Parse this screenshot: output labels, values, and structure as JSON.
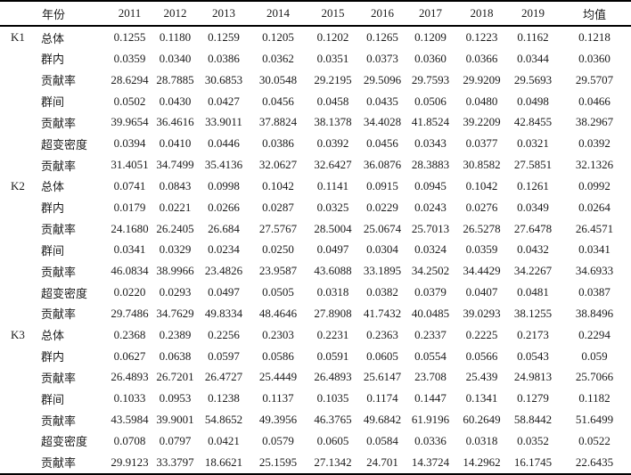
{
  "table": {
    "year_header": "年份",
    "columns": [
      "2011",
      "2012",
      "2013",
      "2014",
      "2015",
      "2016",
      "2017",
      "2018",
      "2019",
      "均值"
    ],
    "groups": [
      {
        "name": "K1",
        "rows": [
          {
            "label": "总体",
            "values": [
              "0.1255",
              "0.1180",
              "0.1259",
              "0.1205",
              "0.1202",
              "0.1265",
              "0.1209",
              "0.1223",
              "0.1162",
              "0.1218"
            ]
          },
          {
            "label": "群内",
            "values": [
              "0.0359",
              "0.0340",
              "0.0386",
              "0.0362",
              "0.0351",
              "0.0373",
              "0.0360",
              "0.0366",
              "0.0344",
              "0.0360"
            ]
          },
          {
            "label": "贡献率",
            "values": [
              "28.6294",
              "28.7885",
              "30.6853",
              "30.0548",
              "29.2195",
              "29.5096",
              "29.7593",
              "29.9209",
              "29.5693",
              "29.5707"
            ]
          },
          {
            "label": "群间",
            "values": [
              "0.0502",
              "0.0430",
              "0.0427",
              "0.0456",
              "0.0458",
              "0.0435",
              "0.0506",
              "0.0480",
              "0.0498",
              "0.0466"
            ]
          },
          {
            "label": "贡献率",
            "values": [
              "39.9654",
              "36.4616",
              "33.9011",
              "37.8824",
              "38.1378",
              "34.4028",
              "41.8524",
              "39.2209",
              "42.8455",
              "38.2967"
            ]
          },
          {
            "label": "超变密度",
            "values": [
              "0.0394",
              "0.0410",
              "0.0446",
              "0.0386",
              "0.0392",
              "0.0456",
              "0.0343",
              "0.0377",
              "0.0321",
              "0.0392"
            ]
          },
          {
            "label": "贡献率",
            "values": [
              "31.4051",
              "34.7499",
              "35.4136",
              "32.0627",
              "32.6427",
              "36.0876",
              "28.3883",
              "30.8582",
              "27.5851",
              "32.1326"
            ]
          }
        ]
      },
      {
        "name": "K2",
        "rows": [
          {
            "label": "总体",
            "values": [
              "0.0741",
              "0.0843",
              "0.0998",
              "0.1042",
              "0.1141",
              "0.0915",
              "0.0945",
              "0.1042",
              "0.1261",
              "0.0992"
            ]
          },
          {
            "label": "群内",
            "values": [
              "0.0179",
              "0.0221",
              "0.0266",
              "0.0287",
              "0.0325",
              "0.0229",
              "0.0243",
              "0.0276",
              "0.0349",
              "0.0264"
            ]
          },
          {
            "label": "贡献率",
            "values": [
              "24.1680",
              "26.2405",
              "26.684",
              "27.5767",
              "28.5004",
              "25.0674",
              "25.7013",
              "26.5278",
              "27.6478",
              "26.4571"
            ]
          },
          {
            "label": "群间",
            "values": [
              "0.0341",
              "0.0329",
              "0.0234",
              "0.0250",
              "0.0497",
              "0.0304",
              "0.0324",
              "0.0359",
              "0.0432",
              "0.0341"
            ]
          },
          {
            "label": "贡献率",
            "values": [
              "46.0834",
              "38.9966",
              "23.4826",
              "23.9587",
              "43.6088",
              "33.1895",
              "34.2502",
              "34.4429",
              "34.2267",
              "34.6933"
            ]
          },
          {
            "label": "超变密度",
            "values": [
              "0.0220",
              "0.0293",
              "0.0497",
              "0.0505",
              "0.0318",
              "0.0382",
              "0.0379",
              "0.0407",
              "0.0481",
              "0.0387"
            ]
          },
          {
            "label": "贡献率",
            "values": [
              "29.7486",
              "34.7629",
              "49.8334",
              "48.4646",
              "27.8908",
              "41.7432",
              "40.0485",
              "39.0293",
              "38.1255",
              "38.8496"
            ]
          }
        ]
      },
      {
        "name": "K3",
        "rows": [
          {
            "label": "总体",
            "values": [
              "0.2368",
              "0.2389",
              "0.2256",
              "0.2303",
              "0.2231",
              "0.2363",
              "0.2337",
              "0.2225",
              "0.2173",
              "0.2294"
            ]
          },
          {
            "label": "群内",
            "values": [
              "0.0627",
              "0.0638",
              "0.0597",
              "0.0586",
              "0.0591",
              "0.0605",
              "0.0554",
              "0.0566",
              "0.0543",
              "0.059"
            ]
          },
          {
            "label": "贡献率",
            "values": [
              "26.4893",
              "26.7201",
              "26.4727",
              "25.4449",
              "26.4893",
              "25.6147",
              "23.708",
              "25.439",
              "24.9813",
              "25.7066"
            ]
          },
          {
            "label": "群间",
            "values": [
              "0.1033",
              "0.0953",
              "0.1238",
              "0.1137",
              "0.1035",
              "0.1174",
              "0.1447",
              "0.1341",
              "0.1279",
              "0.1182"
            ]
          },
          {
            "label": "贡献率",
            "values": [
              "43.5984",
              "39.9001",
              "54.8652",
              "49.3956",
              "46.3765",
              "49.6842",
              "61.9196",
              "60.2649",
              "58.8442",
              "51.6499"
            ]
          },
          {
            "label": "超变密度",
            "values": [
              "0.0708",
              "0.0797",
              "0.0421",
              "0.0579",
              "0.0605",
              "0.0584",
              "0.0336",
              "0.0318",
              "0.0352",
              "0.0522"
            ]
          },
          {
            "label": "贡献率",
            "values": [
              "29.9123",
              "33.3797",
              "18.6621",
              "25.1595",
              "27.1342",
              "24.701",
              "14.3724",
              "14.2962",
              "16.1745",
              "22.6435"
            ]
          }
        ]
      }
    ]
  }
}
